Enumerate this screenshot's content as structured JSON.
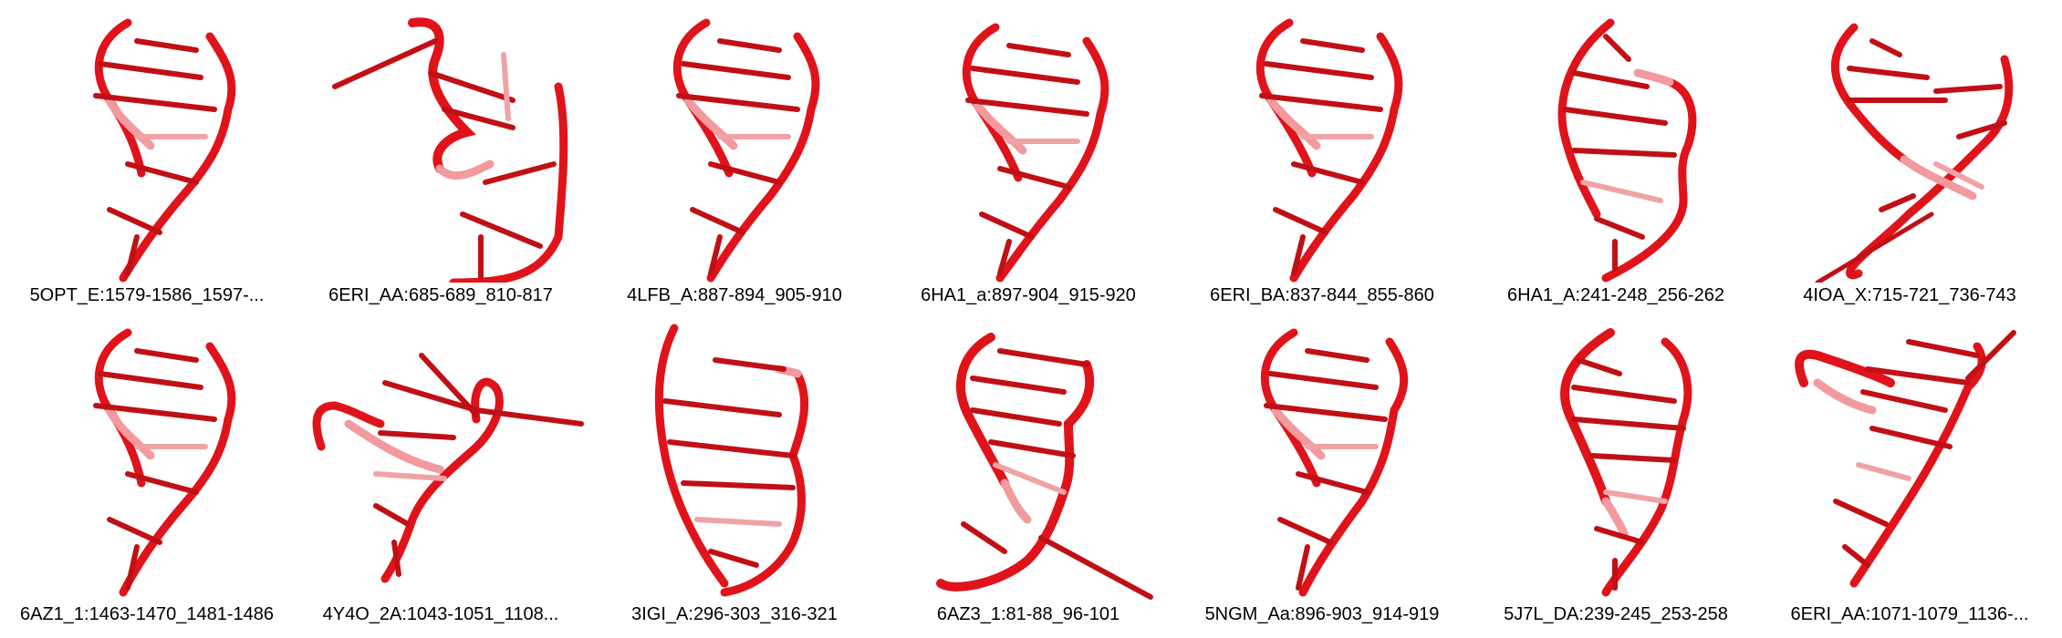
{
  "colors": {
    "backbone": "#e0131b",
    "backbone_dark": "#7a0c10",
    "backbone_light": "#f29a9e",
    "base": "#c01015",
    "base_light": "#f0a3a6"
  },
  "panels": [
    {
      "label": "5OPT_E:1579-1586_1597-..."
    },
    {
      "label": "6ERI_AA:685-689_810-817"
    },
    {
      "label": "4LFB_A:887-894_905-910"
    },
    {
      "label": "6HA1_a:897-904_915-920"
    },
    {
      "label": "6ERI_BA:837-844_855-860"
    },
    {
      "label": "6HA1_A:241-248_256-262"
    },
    {
      "label": "4IOA_X:715-721_736-743"
    },
    {
      "label": "6AZ1_1:1463-1470_1481-1486"
    },
    {
      "label": "4Y4O_2A:1043-1051_1108..."
    },
    {
      "label": "3IGI_A:296-303_316-321"
    },
    {
      "label": "6AZ3_1:81-88_96-101"
    },
    {
      "label": "5NGM_Aa:896-903_914-919"
    },
    {
      "label": "5J7L_DA:239-245_253-258"
    },
    {
      "label": "6ERI_AA:1071-1079_1136-..."
    }
  ]
}
